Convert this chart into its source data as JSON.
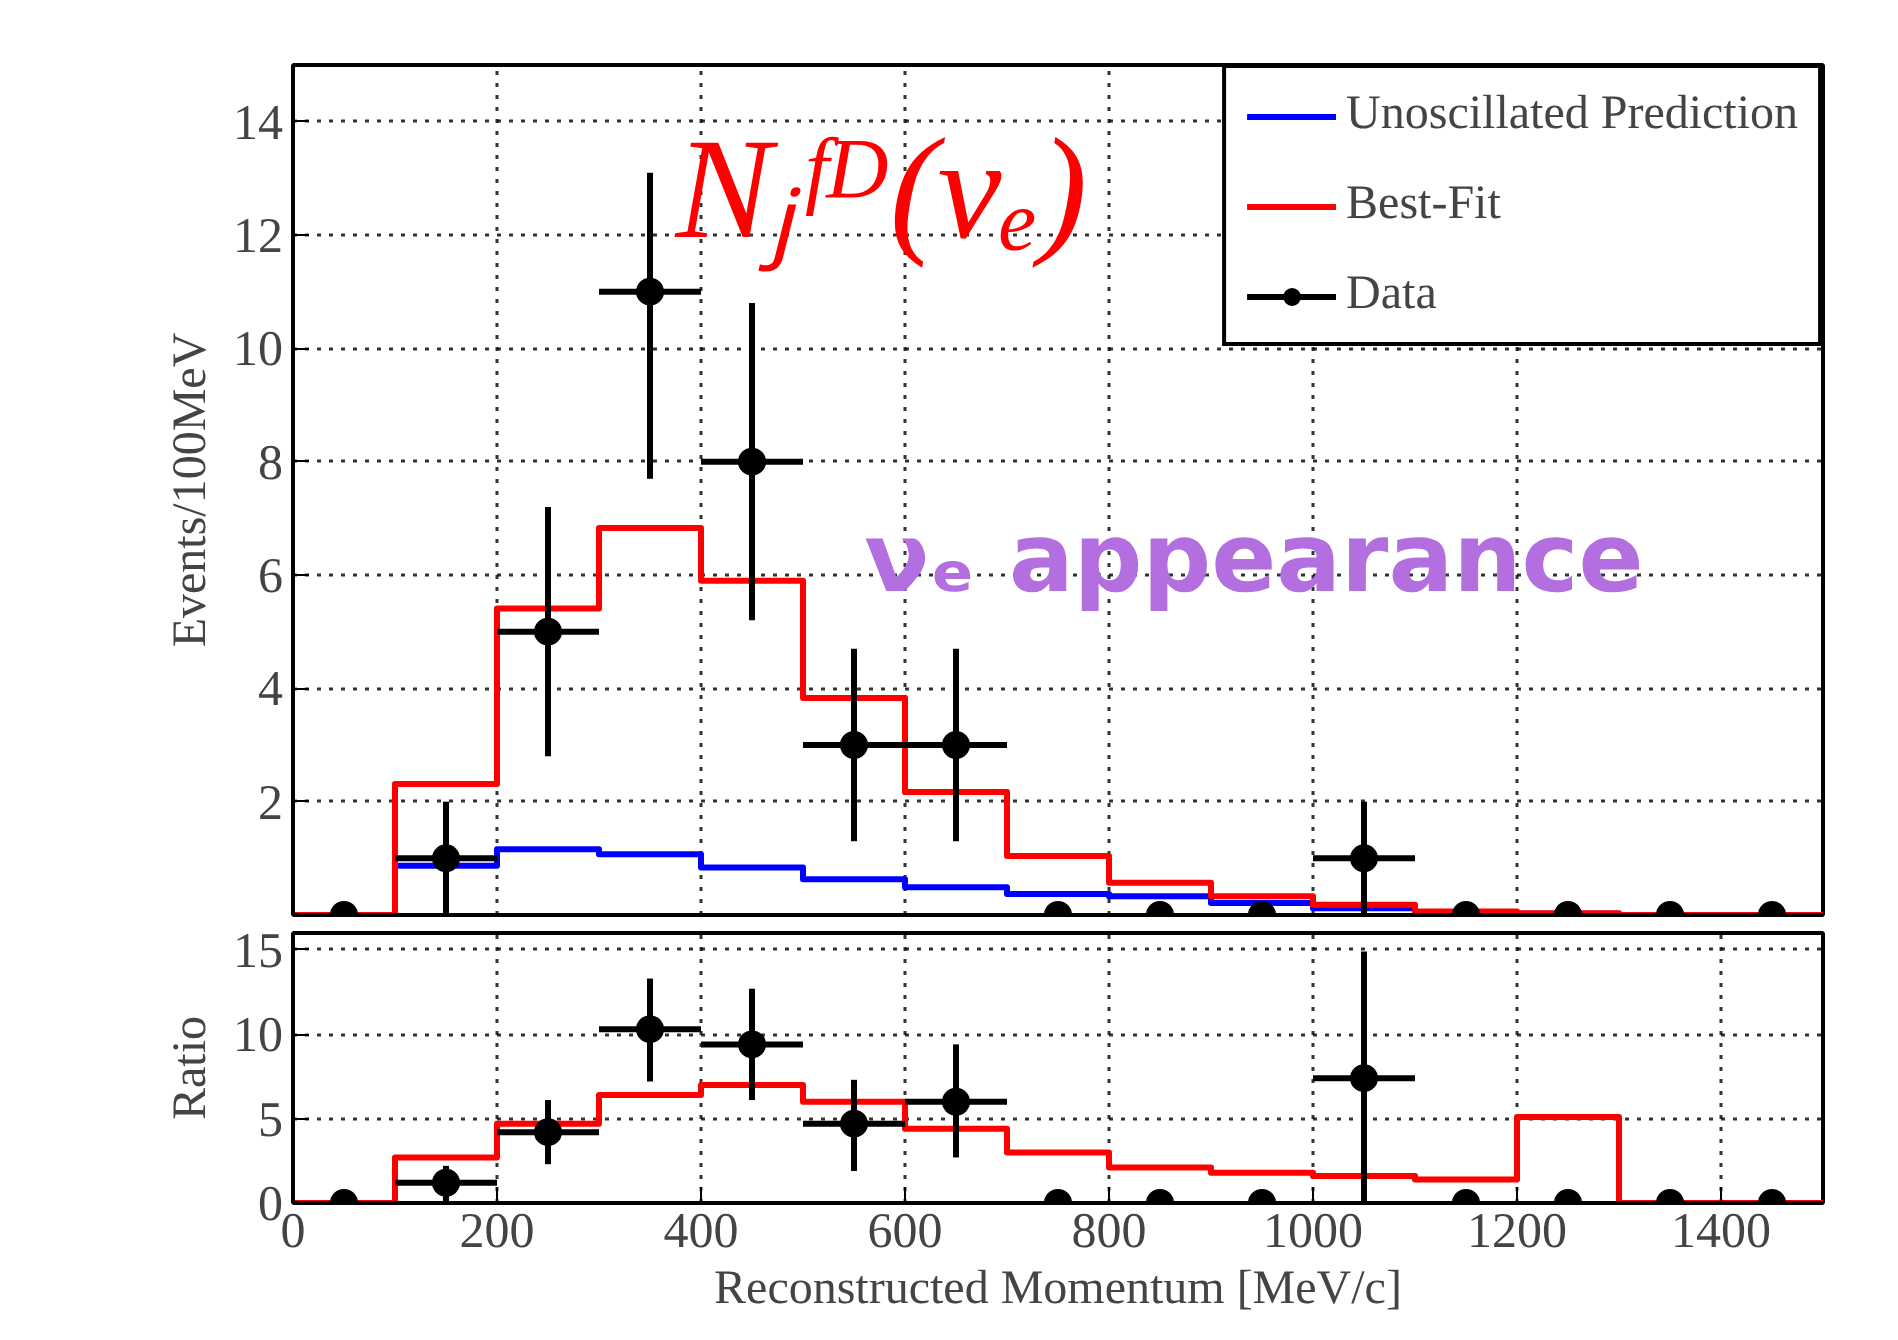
{
  "chart_data": [
    {
      "type": "histogram",
      "ylabel": "Events/100MeV",
      "bins": [
        0,
        100,
        200,
        300,
        400,
        500,
        600,
        700,
        800,
        900,
        1000,
        1100,
        1200,
        1300,
        1400,
        1500
      ],
      "series": [
        {
          "name": "Unoscillated Prediction",
          "color": "#0000ff",
          "values": [
            0,
            0.87,
            1.16,
            1.07,
            0.84,
            0.63,
            0.49,
            0.37,
            0.33,
            0.21,
            0.12,
            0.05,
            0.02,
            0,
            0
          ]
        },
        {
          "name": "Best-Fit",
          "color": "#ff0000",
          "values": [
            0,
            2.31,
            5.41,
            6.83,
            5.9,
            3.83,
            2.17,
            1.04,
            0.57,
            0.33,
            0.18,
            0.06,
            0.03,
            0,
            0
          ]
        },
        {
          "name": "Data",
          "type": "scatter",
          "marker": "circle",
          "color": "#000000",
          "x": [
            50,
            150,
            250,
            350,
            450,
            550,
            650,
            750,
            850,
            950,
            1050,
            1150,
            1250,
            1350,
            1450
          ],
          "values": [
            0,
            1,
            5,
            11,
            8,
            3,
            3,
            0,
            0,
            0,
            1,
            0,
            0,
            0,
            0
          ],
          "errors": [
            null,
            [
              0,
              2
            ],
            [
              2.8,
              7.2
            ],
            [
              7.7,
              13.1
            ],
            [
              5.2,
              10.8
            ],
            [
              1.3,
              4.7
            ],
            [
              1.3,
              4.7
            ],
            null,
            null,
            null,
            [
              0,
              2
            ],
            null,
            null,
            null,
            null
          ],
          "xerrors": [
            null,
            50,
            50,
            50,
            50,
            50,
            50,
            null,
            null,
            null,
            50,
            null,
            null,
            null,
            null
          ]
        }
      ],
      "annotations": [
        "Nⱼᶠᴰ(νₑ)",
        "νₑ appearance"
      ],
      "xlim": [
        0,
        1500
      ],
      "ylim": [
        0,
        15
      ],
      "yticks": [
        2,
        4,
        6,
        8,
        10,
        12,
        14
      ],
      "grid": true,
      "legend": "top right",
      "tick_labels": "y"
    },
    {
      "type": "histogram",
      "xlabel": "Reconstructed Momentum [MeV/c]",
      "ylabel": "Ratio",
      "bins": [
        0,
        100,
        200,
        300,
        400,
        500,
        600,
        700,
        800,
        900,
        1000,
        1100,
        1200,
        1300,
        1400,
        1500
      ],
      "series": [
        {
          "color": "#ff0000",
          "values": [
            0,
            2.7,
            4.7,
            6.4,
            7,
            6,
            4.4,
            3,
            2.1,
            1.8,
            1.6,
            1.4,
            5.1,
            0,
            0
          ]
        },
        {
          "type": "scatter",
          "marker": "circle",
          "color": "#000000",
          "x": [
            50,
            150,
            250,
            350,
            450,
            550,
            650,
            750,
            850,
            950,
            1050,
            1150,
            1250,
            1350,
            1450
          ],
          "values": [
            0,
            1.2,
            4.2,
            10.3,
            9.4,
            4.7,
            6,
            0,
            0,
            0,
            7.4,
            0,
            0,
            0,
            0
          ],
          "errors": [
            null,
            [
              0,
              2.2
            ],
            [
              2.3,
              6.1
            ],
            [
              7.2,
              13.3
            ],
            [
              6.1,
              12.7
            ],
            [
              1.9,
              7.3
            ],
            [
              2.7,
              9.4
            ],
            null,
            null,
            null,
            [
              0,
              14.9
            ],
            null,
            null,
            null,
            null
          ],
          "xerrors": [
            null,
            50,
            50,
            50,
            50,
            50,
            50,
            null,
            null,
            null,
            50,
            null,
            null,
            null,
            null
          ]
        }
      ],
      "xlim": [
        0,
        1500
      ],
      "xticks": [
        0,
        200,
        400,
        600,
        800,
        1000,
        1200,
        1400
      ],
      "ylim": [
        0,
        16
      ],
      "yticks": [
        0,
        5,
        10,
        15
      ],
      "grid": true
    }
  ]
}
